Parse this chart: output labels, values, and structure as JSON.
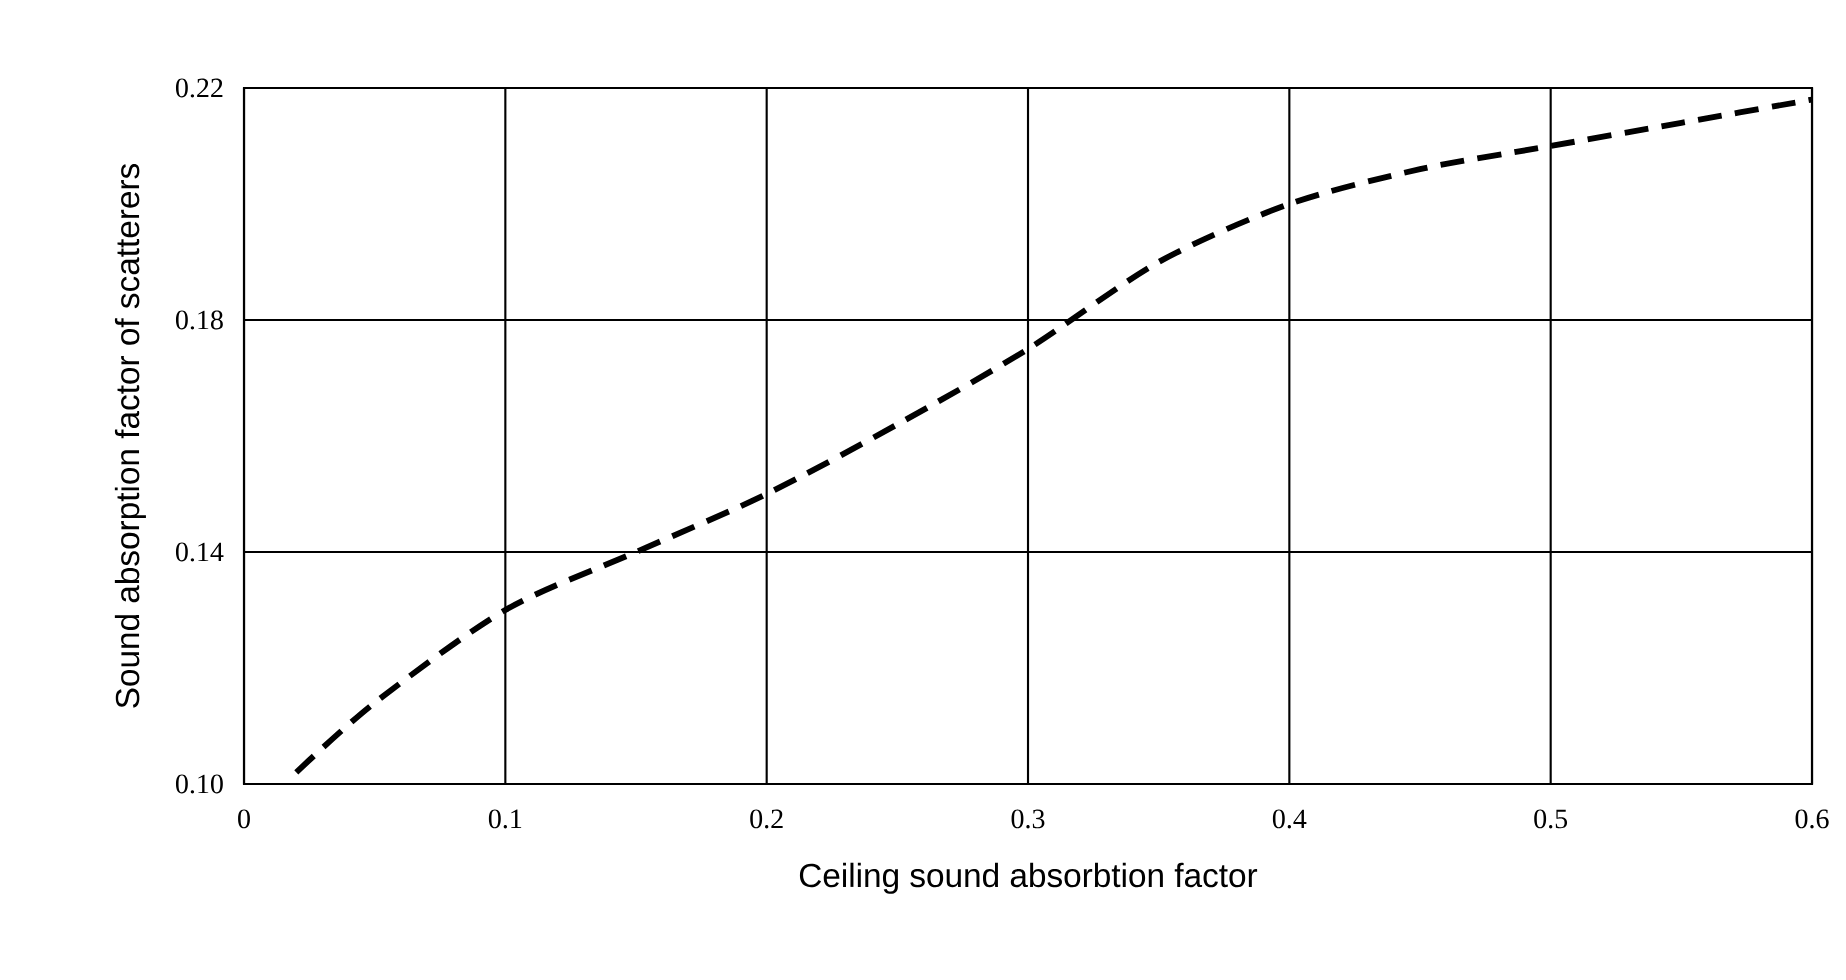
{
  "chart_data": {
    "type": "line",
    "xlabel": "Ceiling sound absorbtion factor",
    "ylabel": "Sound absorption factor of scatterers",
    "x": [
      0.02,
      0.05,
      0.1,
      0.15,
      0.2,
      0.25,
      0.3,
      0.35,
      0.4,
      0.45,
      0.5,
      0.55,
      0.6
    ],
    "series": [
      {
        "color": "#000000",
        "values": [
          0.102,
          0.114,
          0.13,
          0.14,
          0.15,
          0.162,
          0.175,
          0.19,
          0.2,
          0.206,
          0.21,
          0.214,
          0.218
        ]
      }
    ],
    "xlim": [
      0,
      0.6
    ],
    "ylim": [
      0.1,
      0.22
    ],
    "xticks": [
      0,
      0.1,
      0.2,
      0.3,
      0.4,
      0.5,
      0.6
    ],
    "yticks": [
      {
        "value": 0.1,
        "label": "0.10"
      },
      {
        "value": 0.14,
        "label": "0.14"
      },
      {
        "value": 0.18,
        "label": "0.18"
      },
      {
        "value": 0.22,
        "label": "0.22"
      }
    ],
    "grid": true,
    "line_style": "dashed",
    "marker": "none"
  }
}
